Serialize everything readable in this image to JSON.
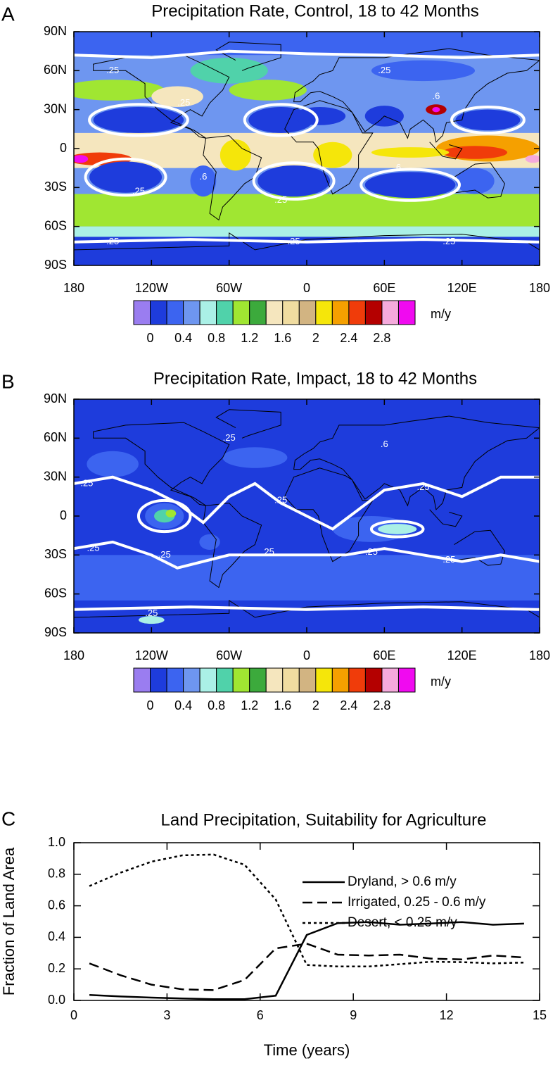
{
  "chart_data": [
    {
      "type": "contour_map",
      "panel_label": "A",
      "title": "Precipitation Rate, Control, 18 to 42 Months",
      "xlim": [
        -180,
        180
      ],
      "xticks": [
        {
          "value": -180,
          "label": "180"
        },
        {
          "value": -120,
          "label": "120W"
        },
        {
          "value": -60,
          "label": "60W"
        },
        0,
        {
          "value": 60,
          "label": "60E"
        },
        {
          "value": 120,
          "label": "120E"
        },
        180
      ],
      "ylim": [
        -90,
        90
      ],
      "yticks": [
        {
          "value": 90,
          "label": "90N"
        },
        {
          "value": 60,
          "label": "60N"
        },
        {
          "value": 30,
          "label": "30N"
        },
        0,
        {
          "value": -30,
          "label": "30S"
        },
        {
          "value": -60,
          "label": "60S"
        },
        {
          "value": -90,
          "label": "90S"
        }
      ],
      "colorbar": {
        "levels": [
          0,
          0.2,
          0.4,
          0.6,
          0.8,
          1,
          1.2,
          1.4,
          1.6,
          1.8,
          2,
          2.2,
          2.4,
          2.6,
          2.8,
          3
        ],
        "ticks": [
          0,
          0.4,
          0.8,
          1.2,
          1.6,
          2,
          2.4,
          2.8
        ],
        "colors": [
          "#9a7df0",
          "#1e3cdc",
          "#3c64f0",
          "#6e96f0",
          "#aaf0e6",
          "#50d2aa",
          "#a0e632",
          "#3caa3c",
          "#f5e6be",
          "#f0dca0",
          "#d2b482",
          "#f5e60a",
          "#f5a000",
          "#f03c0a",
          "#b40000",
          "#f5aadc",
          "#f00af0"
        ],
        "label": "m/y"
      },
      "contour_labels": [
        ".25",
        ".6"
      ]
    },
    {
      "type": "contour_map",
      "panel_label": "B",
      "title": "Precipitation Rate, Impact, 18 to 42 Months",
      "xlim": [
        -180,
        180
      ],
      "xticks": [
        {
          "value": -180,
          "label": "180"
        },
        {
          "value": -120,
          "label": "120W"
        },
        {
          "value": -60,
          "label": "60W"
        },
        0,
        {
          "value": 60,
          "label": "60E"
        },
        {
          "value": 120,
          "label": "120E"
        },
        180
      ],
      "ylim": [
        -90,
        90
      ],
      "yticks": [
        {
          "value": 90,
          "label": "90N"
        },
        {
          "value": 60,
          "label": "60N"
        },
        {
          "value": 30,
          "label": "30N"
        },
        0,
        {
          "value": -30,
          "label": "30S"
        },
        {
          "value": -60,
          "label": "60S"
        },
        {
          "value": -90,
          "label": "90S"
        }
      ],
      "colorbar": {
        "levels": [
          0,
          0.2,
          0.4,
          0.6,
          0.8,
          1,
          1.2,
          1.4,
          1.6,
          1.8,
          2,
          2.2,
          2.4,
          2.6,
          2.8,
          3
        ],
        "ticks": [
          0,
          0.4,
          0.8,
          1.2,
          1.6,
          2,
          2.4,
          2.8
        ],
        "colors": [
          "#9a7df0",
          "#1e3cdc",
          "#3c64f0",
          "#6e96f0",
          "#aaf0e6",
          "#50d2aa",
          "#a0e632",
          "#3caa3c",
          "#f5e6be",
          "#f0dca0",
          "#d2b482",
          "#f5e60a",
          "#f5a000",
          "#f03c0a",
          "#b40000",
          "#f5aadc",
          "#f00af0"
        ],
        "label": "m/y"
      },
      "contour_labels": [
        ".25",
        ".6"
      ]
    },
    {
      "type": "line",
      "panel_label": "C",
      "title": "Land Precipitation, Suitability for Agriculture",
      "x_label": "Time (years)",
      "y_label": "Fraction of Land Area",
      "x": [
        0.5,
        1.5,
        2.5,
        3.5,
        4.5,
        5.5,
        6.5,
        7.5,
        8.5,
        9.5,
        10.5,
        11.5,
        12.5,
        13.5,
        14.5
      ],
      "series": [
        {
          "name": "Dryland, > 0.6 m/y",
          "color": "#000000",
          "dash": "solid",
          "values": [
            0.035,
            0.025,
            0.018,
            0.012,
            0.008,
            0.008,
            0.03,
            0.415,
            0.49,
            0.497,
            0.48,
            0.488,
            0.497,
            0.48,
            0.487
          ]
        },
        {
          "name": "Irrigated, 0.25 - 0.6 m/y",
          "color": "#000000",
          "dash": "dashed",
          "values": [
            0.235,
            0.16,
            0.1,
            0.07,
            0.065,
            0.13,
            0.33,
            0.36,
            0.29,
            0.285,
            0.29,
            0.265,
            0.26,
            0.285,
            0.272
          ]
        },
        {
          "name": "Desert, < 0.25 m/y",
          "color": "#000000",
          "dash": "dotted",
          "values": [
            0.725,
            0.81,
            0.88,
            0.92,
            0.925,
            0.86,
            0.64,
            0.225,
            0.215,
            0.215,
            0.23,
            0.245,
            0.243,
            0.235,
            0.24
          ]
        }
      ],
      "xlim": [
        0,
        15
      ],
      "xticks": [
        0,
        3,
        6,
        9,
        12,
        15
      ],
      "ylim": [
        0,
        1
      ],
      "yticks": [
        {
          "value": 0,
          "label": "0.0"
        },
        0.2,
        0.4,
        0.6,
        0.8,
        {
          "value": 1,
          "label": "1.0"
        }
      ],
      "legend": "upper right"
    }
  ]
}
